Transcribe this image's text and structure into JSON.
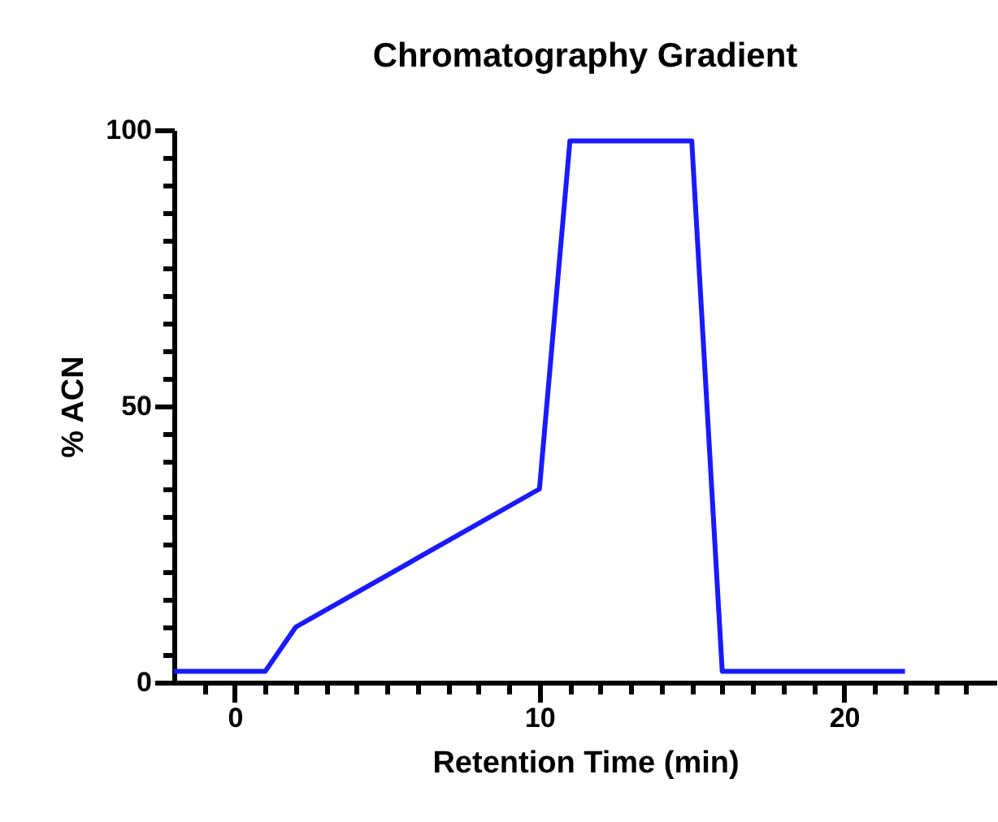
{
  "chart_data": {
    "type": "line",
    "title": "Chromatography Gradient",
    "xlabel": "Retention Time (min)",
    "ylabel": "% ACN",
    "x": [
      -2,
      1,
      2,
      10,
      11,
      15,
      16,
      22
    ],
    "series": [
      {
        "color": "#1a1aff",
        "values": [
          2,
          2,
          10,
          35,
          98,
          98,
          2,
          2
        ]
      }
    ],
    "xlim": [
      -2,
      25
    ],
    "ylim": [
      0,
      100
    ],
    "xticks": [
      {
        "value": -1,
        "label": null
      },
      0,
      {
        "value": 1,
        "label": null
      },
      {
        "value": 2,
        "label": null
      },
      {
        "value": 3,
        "label": null
      },
      {
        "value": 4,
        "label": null
      },
      {
        "value": 5,
        "label": null
      },
      {
        "value": 6,
        "label": null
      },
      {
        "value": 7,
        "label": null
      },
      {
        "value": 8,
        "label": null
      },
      {
        "value": 9,
        "label": null
      },
      10,
      {
        "value": 11,
        "label": null
      },
      {
        "value": 12,
        "label": null
      },
      {
        "value": 13,
        "label": null
      },
      {
        "value": 14,
        "label": null
      },
      {
        "value": 15,
        "label": null
      },
      {
        "value": 16,
        "label": null
      },
      {
        "value": 17,
        "label": null
      },
      {
        "value": 18,
        "label": null
      },
      {
        "value": 19,
        "label": null
      },
      20,
      {
        "value": 21,
        "label": null
      },
      {
        "value": 22,
        "label": null
      },
      {
        "value": 23,
        "label": null
      },
      {
        "value": 24,
        "label": null
      }
    ],
    "yticks": [
      0,
      {
        "value": 5,
        "label": null
      },
      {
        "value": 10,
        "label": null
      },
      {
        "value": 15,
        "label": null
      },
      {
        "value": 20,
        "label": null
      },
      {
        "value": 25,
        "label": null
      },
      {
        "value": 30,
        "label": null
      },
      {
        "value": 35,
        "label": null
      },
      {
        "value": 40,
        "label": null
      },
      {
        "value": 45,
        "label": null
      },
      50,
      {
        "value": 55,
        "label": null
      },
      {
        "value": 60,
        "label": null
      },
      {
        "value": 65,
        "label": null
      },
      {
        "value": 70,
        "label": null
      },
      {
        "value": 75,
        "label": null
      },
      {
        "value": 80,
        "label": null
      },
      {
        "value": 85,
        "label": null
      },
      {
        "value": 90,
        "label": null
      },
      {
        "value": 95,
        "label": null
      },
      100
    ],
    "grid": false,
    "marker": "none",
    "line_style": "solid"
  }
}
